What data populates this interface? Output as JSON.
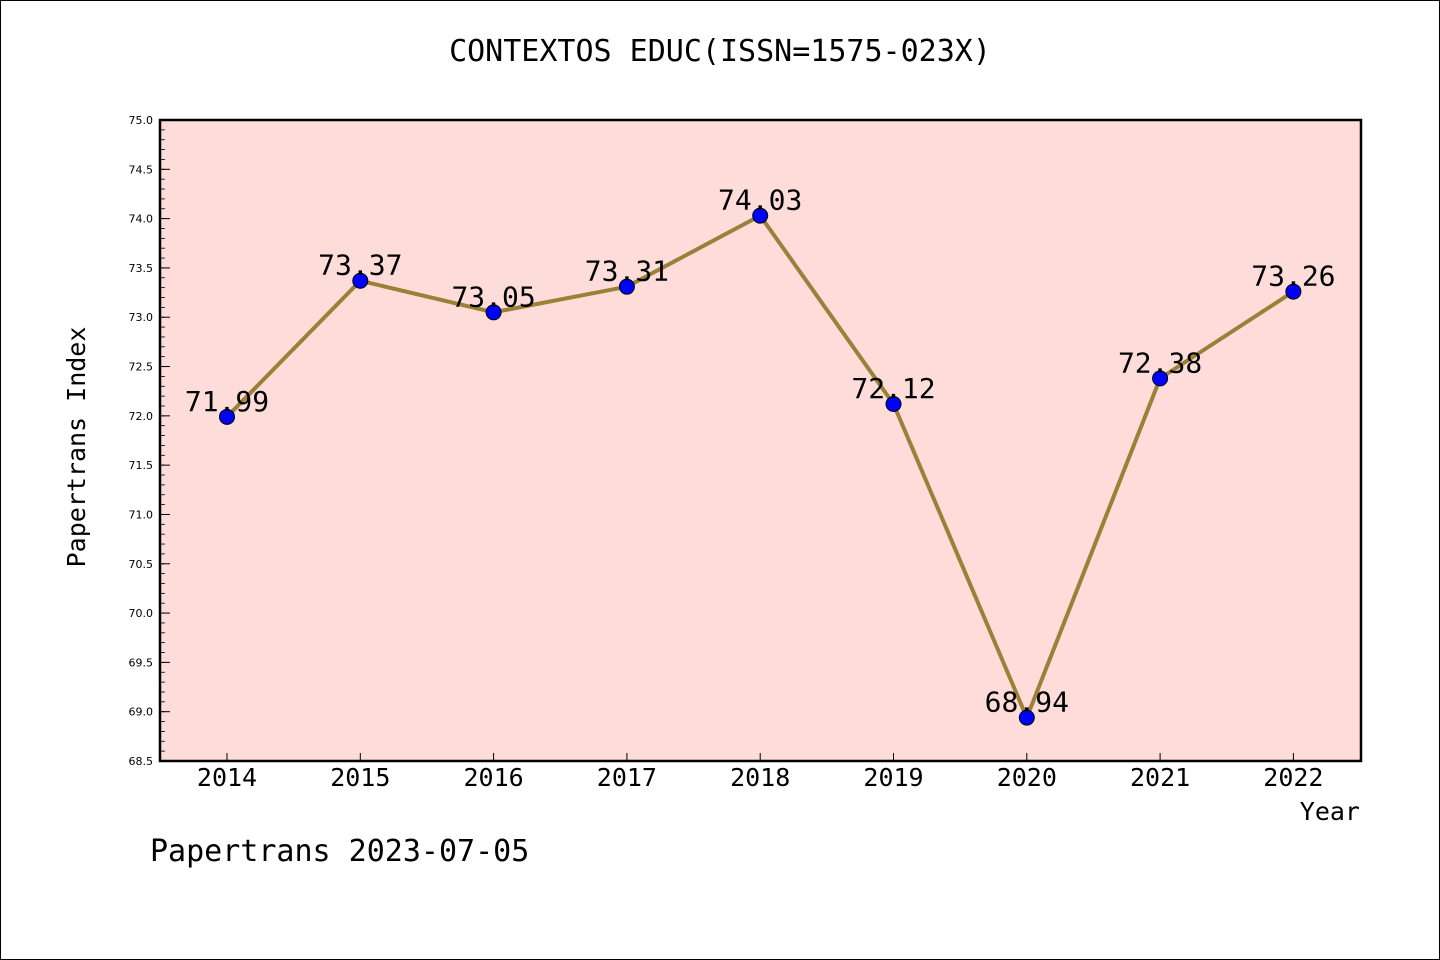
{
  "title": "CONTEXTOS EDUC(ISSN=1575-023X)",
  "footer": "Papertrans 2023-07-05",
  "colors": {
    "plot_background": "#fddcda",
    "line": "#9b8038",
    "marker": "#0000ff"
  },
  "chart_data": {
    "type": "line",
    "title": "CONTEXTOS EDUC(ISSN=1575-023X)",
    "xlabel": "Year",
    "ylabel": "Papertrans Index",
    "categories": [
      "2014",
      "2015",
      "2016",
      "2017",
      "2018",
      "2019",
      "2020",
      "2021",
      "2022"
    ],
    "series": [
      {
        "values": [
          71.99,
          73.37,
          73.05,
          73.31,
          74.03,
          72.12,
          68.94,
          72.38,
          73.26
        ],
        "labels": [
          "71.99",
          "73.37",
          "73.05",
          "73.31",
          "74.03",
          "72.12",
          "68.94",
          "72.38",
          "73.26"
        ]
      }
    ],
    "ylim": [
      68.5,
      75.0
    ],
    "yticks": [
      "68.5",
      "69.0",
      "69.5",
      "70.0",
      "70.5",
      "71.0",
      "71.5",
      "72.0",
      "72.5",
      "73.0",
      "73.5",
      "74.0",
      "74.5",
      "75.0"
    ],
    "grid": false,
    "legend": "none"
  }
}
